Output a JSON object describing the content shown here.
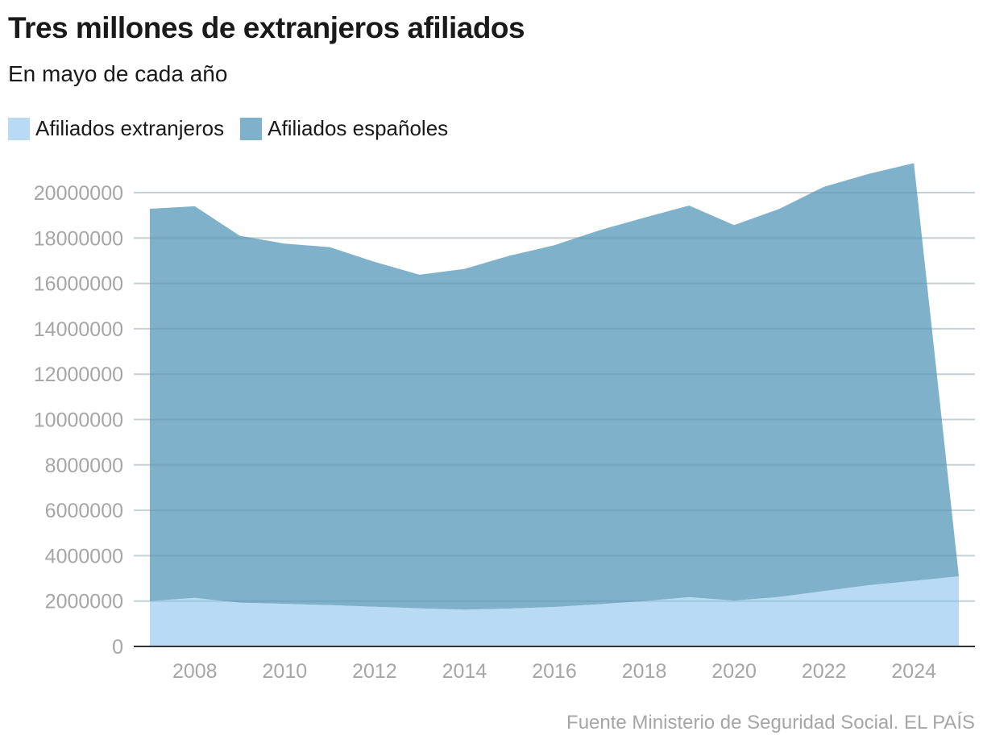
{
  "header": {
    "title": "Tres millones de extranjeros afiliados",
    "subtitle": "En mayo de cada año"
  },
  "legend": [
    {
      "label": "Afiliados extranjeros",
      "color": "#b8daf5"
    },
    {
      "label": "Afiliados españoles",
      "color": "#80b1cb"
    }
  ],
  "footer": {
    "source": "Fuente Ministerio de Seguridad Social. EL PAÍS"
  },
  "chart_data": {
    "type": "area",
    "stacked": true,
    "title": "Tres millones de extranjeros afiliados",
    "subtitle": "En mayo de cada año",
    "xlabel": "",
    "ylabel": "",
    "x": [
      2007,
      2008,
      2009,
      2010,
      2011,
      2012,
      2013,
      2014,
      2015,
      2016,
      2017,
      2018,
      2019,
      2020,
      2021,
      2022,
      2023,
      2024,
      2025
    ],
    "series": [
      {
        "name": "Afiliados extranjeros",
        "color": "#b8daf5",
        "values": [
          2000000,
          2140000,
          1930000,
          1880000,
          1820000,
          1750000,
          1680000,
          1620000,
          1670000,
          1740000,
          1860000,
          2000000,
          2170000,
          2020000,
          2180000,
          2440000,
          2700000,
          2890000,
          3090000
        ]
      },
      {
        "name": "Afiliados españoles",
        "color": "#80b1cb",
        "values": [
          17290000,
          17260000,
          16170000,
          15870000,
          15780000,
          15200000,
          14700000,
          15020000,
          15550000,
          15940000,
          16480000,
          16900000,
          17260000,
          16550000,
          17100000,
          17820000,
          18130000,
          18410000,
          0
        ]
      }
    ],
    "xticks": [
      2008,
      2010,
      2012,
      2014,
      2016,
      2018,
      2020,
      2022,
      2024
    ],
    "yticks": [
      0,
      2000000,
      4000000,
      6000000,
      8000000,
      10000000,
      12000000,
      14000000,
      16000000,
      18000000,
      20000000
    ],
    "ytick_labels": [
      "0",
      "2000000",
      "4000000",
      "6000000",
      "8000000",
      "10000000",
      "12000000",
      "14000000",
      "16000000",
      "18000000",
      "20000000"
    ],
    "xtick_labels": [
      "2008",
      "2010",
      "2012",
      "2014",
      "2016",
      "2018",
      "2020",
      "2022",
      "2024"
    ],
    "ylim": [
      0,
      20000000
    ],
    "xlim": [
      2007,
      2025
    ],
    "grid": true,
    "legend_position": "top-left"
  }
}
